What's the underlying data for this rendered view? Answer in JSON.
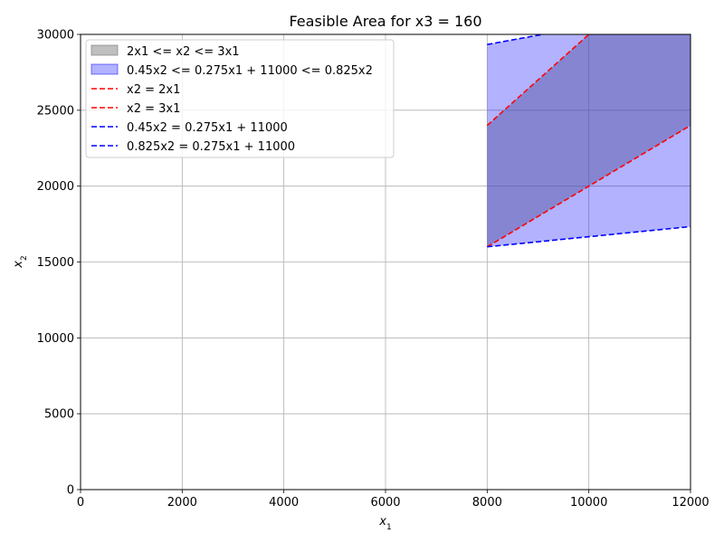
{
  "chart_data": {
    "type": "area",
    "title": "Feasible Area for x3 = 160",
    "xlabel": "x",
    "xlabel_sub": "1",
    "ylabel": "x",
    "ylabel_sub": "2",
    "xlim": [
      0,
      12000
    ],
    "ylim": [
      0,
      30000
    ],
    "xticks": [
      0,
      2000,
      4000,
      6000,
      8000,
      10000,
      12000
    ],
    "yticks": [
      0,
      5000,
      10000,
      15000,
      20000,
      25000,
      30000
    ],
    "xtick_labels": [
      "0",
      "2000",
      "4000",
      "6000",
      "8000",
      "10000",
      "12000"
    ],
    "ytick_labels": [
      "0",
      "5000",
      "10000",
      "15000",
      "20000",
      "25000",
      "30000"
    ],
    "grid": true,
    "legend_position": "top-left",
    "x_domain": [
      8000,
      12000
    ],
    "regions": [
      {
        "name": "2x1 <= x2 <= 3x1",
        "lower": {
          "a": 2,
          "b": 0
        },
        "upper": {
          "a": 3,
          "b": 0
        },
        "color": "#808080",
        "alpha": 0.5
      },
      {
        "name": "0.45x2 <= 0.275x1 + 11000 <= 0.825x2",
        "lower": {
          "a": 0.3333333,
          "b": 13333.33
        },
        "upper": {
          "a": 0.6111111,
          "b": 24444.44
        },
        "color": "#0000ff",
        "alpha": 0.3
      }
    ],
    "series": [
      {
        "name": "x2 = 2x1",
        "a": 2,
        "b": 0,
        "color": "#ff0000"
      },
      {
        "name": "x2 = 3x1",
        "a": 3,
        "b": 0,
        "color": "#ff0000"
      },
      {
        "name": "0.45x2 = 0.275x1 + 11000",
        "a": 0.6111111,
        "b": 24444.44,
        "color": "#0000ff"
      },
      {
        "name": "0.825x2 = 0.275x1 + 11000",
        "a": 0.3333333,
        "b": 13333.33,
        "color": "#0000ff"
      }
    ]
  }
}
